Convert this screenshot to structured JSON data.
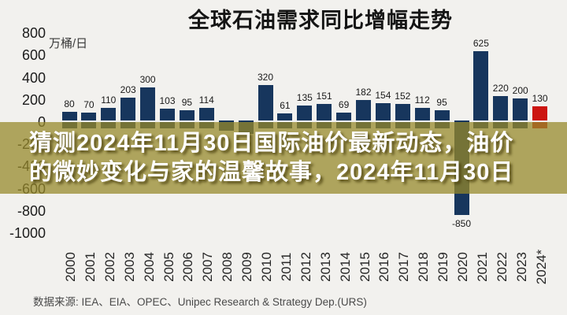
{
  "chart_data": {
    "type": "bar",
    "title": "全球石油需求同比增幅走势",
    "unit_label": "万桶/日",
    "categories": [
      "2000",
      "2001",
      "2002",
      "2003",
      "2004",
      "2005",
      "2006",
      "2007",
      "2008",
      "2009",
      "2010",
      "2011",
      "2012",
      "2013",
      "2014",
      "2015",
      "2016",
      "2017",
      "2018",
      "2019",
      "2020",
      "2021",
      "2022",
      "2023",
      "2024*"
    ],
    "values": [
      80,
      70,
      110,
      203,
      300,
      103,
      95,
      114,
      -90,
      -120,
      320,
      61,
      135,
      151,
      69,
      182,
      154,
      152,
      112,
      95,
      -850,
      625,
      220,
      200,
      130
    ],
    "bar_labels": [
      "80",
      "70",
      "110",
      "203",
      "300",
      "103",
      "95",
      "114",
      "",
      "",
      "320",
      "61",
      "135",
      "151",
      "69",
      "182",
      "154",
      "152",
      "112",
      "95",
      "-850",
      "625",
      "220",
      "200",
      "130"
    ],
    "unlabeled_estimated_indices": [
      8,
      9
    ],
    "yticks": [
      800,
      600,
      400,
      200,
      0,
      -200,
      -400,
      -600,
      -800,
      -1000
    ],
    "ylim": [
      -1000,
      800
    ],
    "grid": "off",
    "legend": "none",
    "bar_color": "#17365d",
    "highlight_color": "#cc1511",
    "highlight_category": "2024*",
    "source": "数据来源: IEA、EIA、OPEC、Unipec Research & Strategy Dep.(URS)"
  },
  "overlay": {
    "line1": "猜测2024年11月30日国际油价最新动态，油价",
    "line2": "的微妙变化与家的温馨故事，2024年11月30日",
    "band_color": "#96882a",
    "text_color": "#ffffff"
  }
}
